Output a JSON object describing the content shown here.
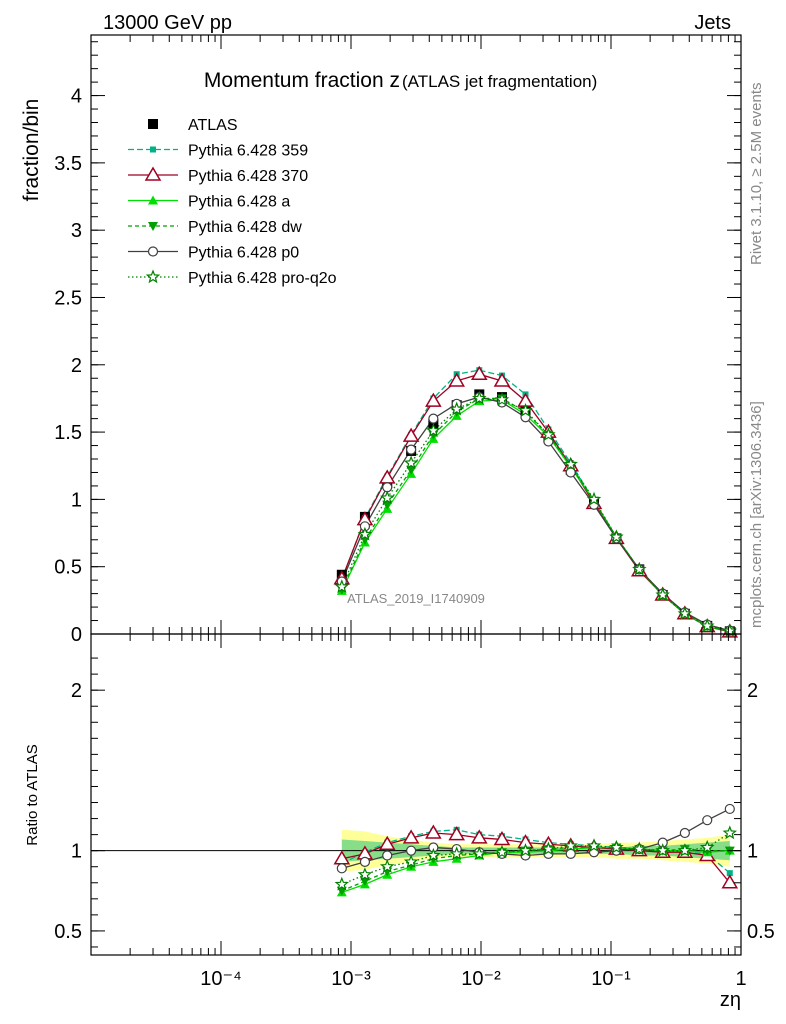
{
  "header": {
    "left": "13000 GeV pp",
    "right": "Jets",
    "side_rivet": "Rivet 3.1.10, ≥ 2.5M events",
    "side_mcplots": "mcplots.cern.ch [arXiv:1306.3436]"
  },
  "chart_data": [
    {
      "type": "line",
      "title_main": "Momentum fraction z",
      "title_sub": "(ATLAS jet fragmentation)",
      "ylabel": "fraction/bin",
      "watermark": "ATLAS_2019_I1740909",
      "x_scale": "log",
      "xlim": [
        1e-05,
        1
      ],
      "ylim": [
        0,
        4.45
      ],
      "y_ticks": [
        "0",
        "0.5",
        "1",
        "1.5",
        "2",
        "2.5",
        "3",
        "3.5",
        "4"
      ],
      "legend_position": "top-left",
      "x": [
        0.00085,
        0.00128,
        0.0019,
        0.0029,
        0.0043,
        0.0065,
        0.0097,
        0.0145,
        0.022,
        0.033,
        0.049,
        0.074,
        0.11,
        0.165,
        0.25,
        0.37,
        0.55,
        0.82
      ],
      "series": [
        {
          "name": "ATLAS",
          "color": "#000000",
          "style": "data",
          "marker": "square",
          "values": [
            0.44,
            0.87,
            1.12,
            1.36,
            1.56,
            1.7,
            1.78,
            1.76,
            1.66,
            1.46,
            1.22,
            0.97,
            0.71,
            0.48,
            0.29,
            0.15,
            0.06,
            0.02
          ]
        },
        {
          "name": "Pythia 6.428 359",
          "color": "#00b386",
          "dash": "6,3",
          "marker": "smallsquare",
          "values": [
            0.4,
            0.86,
            1.17,
            1.48,
            1.75,
            1.93,
            1.96,
            1.92,
            1.78,
            1.52,
            1.27,
            0.99,
            0.72,
            0.48,
            0.29,
            0.15,
            0.06,
            0.017
          ]
        },
        {
          "name": "Pythia 6.428 370",
          "color": "#a00020",
          "dash": "",
          "marker": "triangle-open",
          "values": [
            0.41,
            0.85,
            1.16,
            1.47,
            1.73,
            1.88,
            1.93,
            1.88,
            1.73,
            1.5,
            1.25,
            0.97,
            0.71,
            0.47,
            0.29,
            0.15,
            0.055,
            0.016
          ]
        },
        {
          "name": "Pythia 6.428 a",
          "color": "#00e000",
          "dash": "",
          "marker": "triangle",
          "values": [
            0.32,
            0.68,
            0.93,
            1.19,
            1.45,
            1.62,
            1.73,
            1.74,
            1.63,
            1.47,
            1.24,
            0.99,
            0.72,
            0.48,
            0.29,
            0.15,
            0.057,
            0.02
          ]
        },
        {
          "name": "Pythia 6.428 dw",
          "color": "#00a000",
          "dash": "4,3",
          "marker": "triangle-down",
          "values": [
            0.33,
            0.7,
            0.96,
            1.22,
            1.48,
            1.65,
            1.75,
            1.75,
            1.65,
            1.48,
            1.25,
            0.99,
            0.72,
            0.48,
            0.29,
            0.15,
            0.058,
            0.02
          ]
        },
        {
          "name": "Pythia 6.428 p0",
          "color": "#404040",
          "dash": "",
          "marker": "circle-open",
          "values": [
            0.39,
            0.8,
            1.09,
            1.37,
            1.6,
            1.71,
            1.76,
            1.72,
            1.61,
            1.43,
            1.2,
            0.96,
            0.71,
            0.48,
            0.3,
            0.16,
            0.07,
            0.025
          ]
        },
        {
          "name": "Pythia 6.428 pro-q2o",
          "color": "#008000",
          "dash": "1.5,2.5",
          "marker": "star",
          "values": [
            0.35,
            0.74,
            1.01,
            1.27,
            1.51,
            1.67,
            1.75,
            1.74,
            1.66,
            1.48,
            1.26,
            1.0,
            0.72,
            0.48,
            0.29,
            0.15,
            0.06,
            0.022
          ]
        }
      ]
    },
    {
      "type": "line",
      "ylabel": "Ratio to ATLAS",
      "xlabel": "zη",
      "x_scale": "log",
      "xlim": [
        1e-05,
        1
      ],
      "ylim": [
        0.35,
        2.35
      ],
      "y_ticks": [
        "0.5",
        "1",
        "2"
      ],
      "x_ticks": [
        "10⁻⁴",
        "10⁻³",
        "10⁻²",
        "10⁻¹",
        "1"
      ],
      "band_outer_color": "#ffff99",
      "band_inner_color": "#88dd88",
      "reference_line": 1,
      "series": [
        {
          "name": "Pythia 6.428 359",
          "values": [
            0.92,
            0.99,
            1.05,
            1.09,
            1.12,
            1.13,
            1.1,
            1.09,
            1.07,
            1.05,
            1.04,
            1.03,
            1.02,
            1.01,
            1.0,
            0.99,
            0.98,
            0.86
          ]
        },
        {
          "name": "Pythia 6.428 370",
          "values": [
            0.95,
            0.98,
            1.04,
            1.08,
            1.11,
            1.1,
            1.08,
            1.07,
            1.05,
            1.04,
            1.03,
            1.02,
            1.01,
            1.0,
            0.99,
            0.99,
            0.97,
            0.8
          ]
        },
        {
          "name": "Pythia 6.428 a",
          "values": [
            0.74,
            0.79,
            0.85,
            0.9,
            0.93,
            0.95,
            0.97,
            0.99,
            0.99,
            1.0,
            1.01,
            1.02,
            1.02,
            1.01,
            1.0,
            1.0,
            0.99,
            1.0
          ]
        },
        {
          "name": "Pythia 6.428 dw",
          "values": [
            0.75,
            0.81,
            0.87,
            0.91,
            0.95,
            0.97,
            0.98,
            0.99,
            1.0,
            1.01,
            1.02,
            1.02,
            1.02,
            1.01,
            1.0,
            1.01,
            1.0,
            1.0
          ]
        },
        {
          "name": "Pythia 6.428 p0",
          "values": [
            0.89,
            0.93,
            0.97,
            1.0,
            1.02,
            1.01,
            0.99,
            0.98,
            0.97,
            0.98,
            0.98,
            0.99,
            1.0,
            1.01,
            1.05,
            1.11,
            1.19,
            1.26
          ]
        },
        {
          "name": "Pythia 6.428 pro-q2o",
          "values": [
            0.79,
            0.85,
            0.9,
            0.93,
            0.97,
            0.98,
            0.98,
            0.99,
            1.0,
            1.01,
            1.03,
            1.03,
            1.02,
            1.01,
            1.0,
            1.0,
            1.02,
            1.11
          ]
        }
      ],
      "band_outer": [
        0.13,
        0.12,
        0.09,
        0.07,
        0.05,
        0.04,
        0.04,
        0.04,
        0.04,
        0.04,
        0.04,
        0.04,
        0.05,
        0.05,
        0.06,
        0.07,
        0.08,
        0.1
      ],
      "band_inner": [
        0.07,
        0.06,
        0.05,
        0.04,
        0.03,
        0.02,
        0.02,
        0.02,
        0.02,
        0.02,
        0.02,
        0.02,
        0.02,
        0.03,
        0.03,
        0.04,
        0.05,
        0.06
      ]
    }
  ]
}
